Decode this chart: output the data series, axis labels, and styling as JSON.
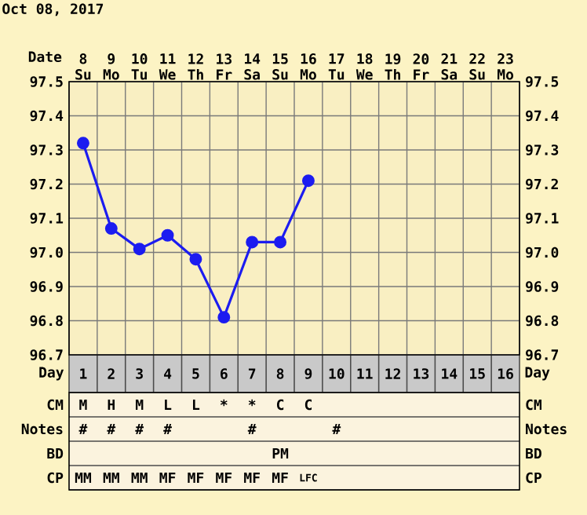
{
  "chart_data": [
    {
      "type": "line",
      "title": "Oct 08, 2017",
      "xlabel": "Day",
      "x2label": "Date",
      "categories": [
        "1",
        "2",
        "3",
        "4",
        "5",
        "6",
        "7",
        "8",
        "9",
        "10",
        "11",
        "12",
        "13",
        "14",
        "15",
        "16"
      ],
      "series": [
        {
          "color": "#1c1cf0",
          "values": [
            97.32,
            97.07,
            97.01,
            97.05,
            96.98,
            96.81,
            97.03,
            97.03,
            97.21,
            null,
            null,
            null,
            null,
            null,
            null,
            null
          ]
        }
      ],
      "x2lim": [
        7.5,
        23.5
      ],
      "x2ticks": [
        {
          "value": 8,
          "label": "8 Su"
        },
        {
          "value": 9,
          "label": "9 Mo"
        },
        {
          "value": 10,
          "label": "10 Tu"
        },
        {
          "value": 11,
          "label": "11 We"
        },
        {
          "value": 12,
          "label": "12 Th"
        },
        {
          "value": 13,
          "label": "13 Fr"
        },
        {
          "value": 14,
          "label": "14 Sa"
        },
        {
          "value": 15,
          "label": "15 Su"
        },
        {
          "value": 16,
          "label": "16 Mo"
        },
        {
          "value": 17,
          "label": "17 Tu"
        },
        {
          "value": 18,
          "label": "18 We"
        },
        {
          "value": 19,
          "label": "19 Th"
        },
        {
          "value": 20,
          "label": "20 Fr"
        },
        {
          "value": 21,
          "label": "21 Sa"
        },
        {
          "value": 22,
          "label": "22 Su"
        },
        {
          "value": 23,
          "label": "23 Mo"
        }
      ],
      "ylim": [
        96.7,
        97.5
      ],
      "yticks": [
        96.7,
        96.8,
        96.9,
        {
          "value": 97.0,
          "label": "97.0"
        },
        97.1,
        97.2,
        97.3,
        97.4,
        97.5
      ],
      "y2lim": [
        96.7,
        97.5
      ],
      "y2ticks": [
        96.7,
        96.8,
        96.9,
        {
          "value": 97.0,
          "label": "97.0"
        },
        97.1,
        97.2,
        97.3,
        97.4,
        97.5
      ],
      "grid": true,
      "marker": "circle",
      "line_style": "solid"
    },
    {
      "type": "other",
      "y_categories": [
        "CM",
        "Notes",
        "BD",
        "CP"
      ],
      "y2_categories": [
        "CM",
        "Notes",
        "BD",
        "CP"
      ],
      "cell_labels": [
        [
          "M",
          "H",
          "M",
          "L",
          "L",
          "*",
          "*",
          "C",
          "C",
          null,
          null,
          null,
          null,
          null,
          null,
          null
        ],
        [
          "#",
          "#",
          "#",
          "#",
          null,
          null,
          "#",
          null,
          null,
          "#",
          null,
          null,
          null,
          null,
          null,
          null
        ],
        [
          null,
          null,
          null,
          null,
          null,
          null,
          null,
          "PM",
          null,
          null,
          null,
          null,
          null,
          null,
          null,
          null
        ],
        [
          "MM",
          "MM",
          "MM",
          "MF",
          "MF",
          "MF",
          "MF",
          "MF",
          "LFC",
          null,
          null,
          null,
          null,
          null,
          null,
          null
        ]
      ]
    }
  ]
}
